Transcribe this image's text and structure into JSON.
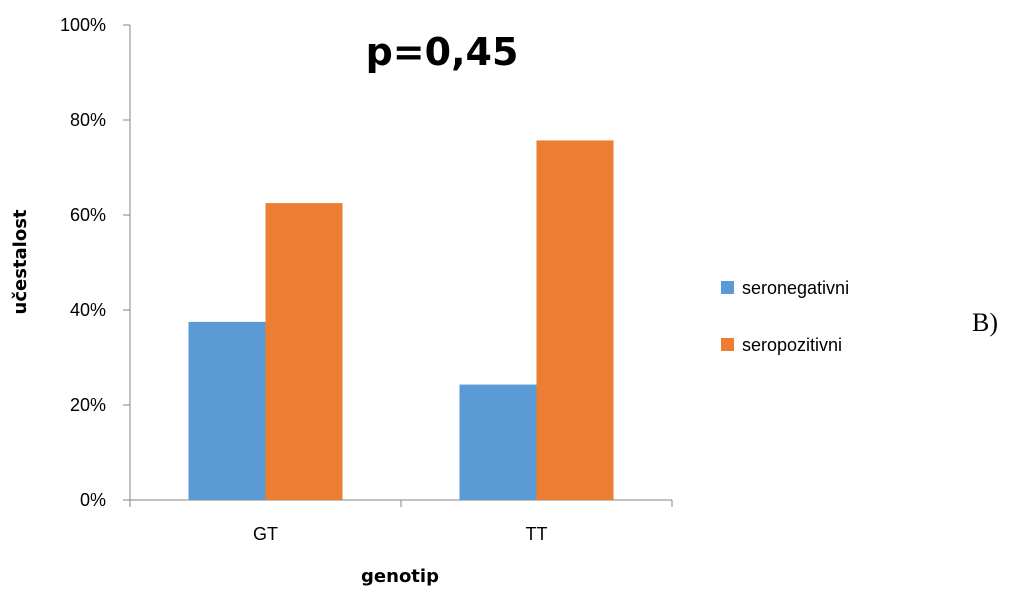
{
  "chart_data": {
    "type": "bar",
    "title": "p=0,45",
    "xlabel": "genotip",
    "ylabel": "učestalost",
    "categories": [
      "GT",
      "TT"
    ],
    "series": [
      {
        "name": "seronegativni",
        "values": [
          37.5,
          24.3
        ],
        "color": "#5b9bd5"
      },
      {
        "name": "seropozitivni",
        "values": [
          62.5,
          75.7
        ],
        "color": "#ed7d31"
      }
    ],
    "ylim": [
      0,
      100
    ],
    "yticks": [
      "0%",
      "20%",
      "40%",
      "60%",
      "80%",
      "100%"
    ],
    "ytick_values": [
      0,
      20,
      40,
      60,
      80,
      100
    ],
    "grid": false,
    "legend_position": "right"
  },
  "panel_label": "B)"
}
